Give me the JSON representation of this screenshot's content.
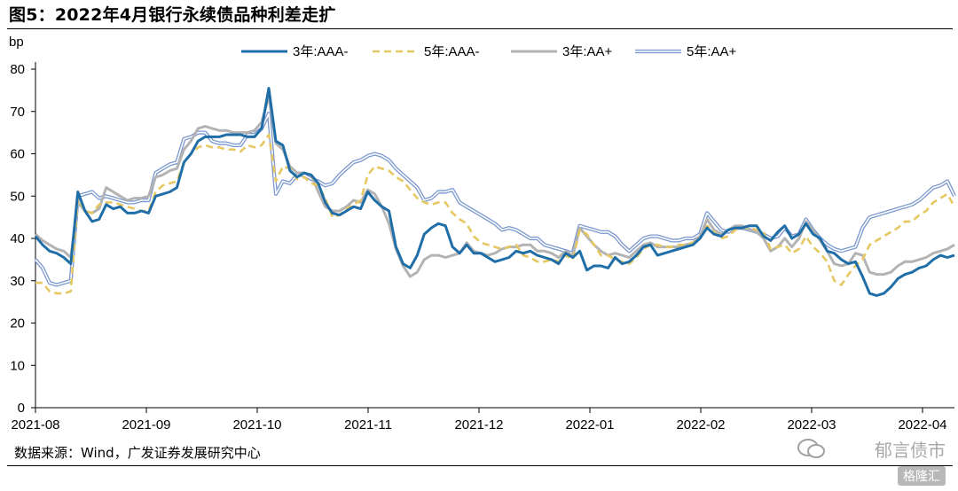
{
  "header": {
    "title": "图5：2022年4月银行永续债品种利差走扩"
  },
  "footer": {
    "source": "数据来源：Wind，广发证券发展研究中心",
    "watermark": "郁言债市",
    "badge": "格隆汇"
  },
  "colors": {
    "s1": "#1f6ea8",
    "s2": "#e6c863",
    "s3": "#b3b3b3",
    "s4_outer": "#7a97cf",
    "s4_inner": "#ffffff"
  },
  "chart_data": {
    "type": "line",
    "ylabel": "bp",
    "ylim": [
      0,
      80
    ],
    "yticks": [
      0,
      10,
      20,
      30,
      40,
      50,
      60,
      70,
      80
    ],
    "x_tick_labels": [
      "2021-08",
      "2021-09",
      "2021-10",
      "2021-11",
      "2021-12",
      "2022-01",
      "2022-02",
      "2022-03",
      "2022-04"
    ],
    "legend_position": "top",
    "grid": false,
    "x": [
      0,
      2,
      4,
      6,
      8,
      10,
      12,
      14,
      16,
      18,
      20,
      22,
      24,
      26,
      28,
      30,
      32,
      34,
      36,
      38,
      40,
      42,
      44,
      46,
      48,
      50,
      52,
      54,
      56,
      58,
      60,
      62,
      64,
      66,
      68,
      70,
      72,
      74,
      76,
      78,
      80,
      82,
      84,
      86,
      88,
      90,
      92,
      94,
      96,
      98,
      100,
      102,
      104,
      106,
      108,
      110,
      112,
      114,
      116,
      118,
      120,
      122,
      124,
      126,
      128,
      130,
      132,
      134,
      136,
      138,
      140,
      142,
      144,
      146,
      148,
      150,
      152,
      154,
      156,
      158,
      160,
      162,
      164,
      166,
      168,
      170,
      172,
      174,
      176,
      178,
      180,
      182,
      184,
      186,
      188,
      190,
      192,
      194,
      196,
      198,
      200,
      202,
      204,
      206,
      208,
      210,
      212,
      214,
      216,
      218,
      220,
      222,
      224,
      226,
      228,
      230,
      232,
      234,
      236,
      238,
      240,
      242,
      244,
      246,
      248,
      250,
      252,
      254,
      256,
      258,
      260
    ],
    "series": [
      {
        "name": "3年:AAA-",
        "values": [
          40.5,
          38.5,
          37.0,
          36.5,
          35.5,
          34.0,
          51.0,
          46.5,
          44.0,
          44.5,
          48.0,
          47.0,
          47.5,
          46.0,
          46.0,
          46.5,
          46.0,
          50.0,
          50.5,
          51.0,
          52.0,
          58.0,
          60.0,
          63.0,
          64.0,
          64.0,
          64.0,
          64.5,
          64.5,
          64.5,
          64.0,
          64.0,
          66.0,
          75.5,
          63.0,
          62.0,
          56.0,
          54.5,
          55.5,
          55.0,
          53.0,
          48.5,
          46.0,
          45.5,
          46.5,
          47.5,
          47.0,
          51.0,
          49.0,
          47.5,
          46.5,
          38.0,
          34.0,
          33.0,
          36.0,
          41.0,
          42.5,
          43.5,
          43.0,
          38.0,
          36.5,
          38.5,
          36.5,
          36.5,
          35.5,
          34.5,
          35.0,
          35.5,
          37.0,
          36.5,
          37.0,
          36.0,
          35.5,
          35.0,
          34.0,
          36.5,
          35.5,
          37.0,
          32.5,
          33.5,
          33.5,
          33.0,
          35.5,
          34.0,
          34.5,
          36.0,
          38.0,
          38.5,
          36.0,
          36.5,
          37.0,
          37.5,
          38.0,
          38.5,
          40.0,
          42.5,
          41.0,
          40.5,
          42.0,
          42.5,
          42.5,
          43.0,
          43.0,
          40.5,
          39.5,
          41.5,
          43.0,
          40.0,
          41.0,
          43.5,
          41.0,
          40.0,
          37.0,
          36.5,
          35.0,
          34.0,
          34.5,
          31.0,
          27.0,
          26.5,
          27.0,
          28.5,
          30.5,
          31.5,
          32.0,
          33.0,
          33.5,
          35.0,
          36.0,
          35.5,
          36.0
        ]
      },
      {
        "name": "5年:AAA-",
        "values": [
          29.5,
          29.5,
          27.5,
          27.0,
          27.0,
          27.5,
          49.5,
          46.5,
          46.0,
          48.0,
          48.5,
          48.5,
          48.0,
          47.5,
          47.0,
          46.5,
          46.5,
          51.0,
          52.5,
          53.0,
          53.5,
          58.0,
          60.0,
          61.5,
          62.0,
          61.5,
          61.5,
          61.0,
          61.0,
          60.5,
          62.0,
          61.5,
          62.0,
          64.5,
          53.5,
          57.0,
          56.5,
          54.0,
          54.5,
          53.0,
          52.5,
          49.5,
          45.0,
          45.5,
          47.0,
          48.0,
          49.0,
          55.0,
          57.0,
          56.5,
          56.0,
          54.5,
          53.5,
          51.5,
          49.5,
          48.5,
          48.0,
          48.5,
          48.5,
          46.0,
          44.5,
          43.5,
          40.5,
          39.0,
          38.5,
          38.0,
          37.5,
          38.0,
          38.5,
          36.0,
          35.5,
          34.5,
          34.5,
          35.0,
          34.5,
          36.0,
          35.0,
          42.0,
          41.0,
          38.5,
          36.0,
          36.0,
          35.0,
          34.5,
          34.0,
          35.5,
          37.5,
          38.5,
          38.5,
          38.0,
          38.0,
          38.5,
          38.5,
          39.0,
          40.0,
          43.0,
          41.5,
          40.0,
          40.5,
          42.0,
          42.5,
          42.5,
          42.0,
          41.5,
          37.5,
          38.0,
          38.5,
          36.5,
          37.5,
          40.5,
          38.0,
          36.5,
          34.5,
          30.0,
          29.0,
          31.5,
          33.5,
          35.0,
          38.5,
          39.5,
          40.5,
          41.5,
          42.5,
          44.0,
          44.0,
          45.5,
          46.5,
          48.5,
          49.5,
          50.5,
          47.5
        ]
      },
      {
        "name": "3年:AA+",
        "values": [
          41.0,
          39.5,
          38.5,
          37.5,
          37.0,
          35.5,
          48.5,
          46.5,
          46.0,
          47.0,
          52.0,
          51.0,
          50.0,
          49.0,
          49.5,
          49.5,
          50.0,
          54.5,
          55.0,
          56.0,
          56.5,
          61.0,
          63.0,
          66.0,
          66.5,
          66.0,
          65.5,
          65.5,
          65.0,
          65.0,
          65.0,
          65.5,
          67.5,
          73.5,
          62.5,
          61.0,
          57.0,
          55.5,
          55.5,
          55.0,
          51.0,
          47.5,
          46.5,
          46.5,
          47.5,
          49.0,
          48.5,
          51.5,
          50.5,
          47.5,
          43.5,
          37.5,
          33.5,
          31.0,
          32.0,
          35.0,
          36.0,
          36.0,
          35.5,
          36.0,
          36.5,
          39.0,
          37.0,
          36.5,
          36.0,
          36.5,
          37.5,
          38.0,
          38.0,
          38.5,
          38.5,
          37.0,
          37.0,
          36.5,
          35.5,
          37.0,
          36.0,
          42.5,
          40.5,
          38.5,
          37.0,
          36.0,
          36.5,
          36.0,
          35.5,
          37.0,
          38.5,
          39.0,
          38.0,
          38.0,
          38.0,
          38.0,
          38.5,
          39.0,
          40.5,
          44.5,
          42.0,
          41.0,
          42.0,
          43.0,
          43.0,
          42.0,
          41.5,
          40.0,
          37.0,
          38.0,
          40.0,
          38.0,
          40.0,
          44.0,
          42.0,
          39.5,
          37.0,
          34.0,
          33.5,
          34.0,
          36.5,
          36.0,
          32.0,
          31.5,
          31.5,
          32.0,
          33.5,
          34.5,
          34.5,
          35.0,
          35.5,
          36.5,
          37.0,
          37.5,
          38.5
        ]
      },
      {
        "name": "5年:AA+",
        "values": [
          35.0,
          33.0,
          29.5,
          29.0,
          29.5,
          30.0,
          50.0,
          50.5,
          51.0,
          49.5,
          50.0,
          49.5,
          49.0,
          48.5,
          48.5,
          49.0,
          49.0,
          55.5,
          56.5,
          57.5,
          58.0,
          63.5,
          64.0,
          65.0,
          65.0,
          63.0,
          62.5,
          62.5,
          62.0,
          62.0,
          64.5,
          64.5,
          66.0,
          69.5,
          50.5,
          53.5,
          53.0,
          55.0,
          55.0,
          54.0,
          53.5,
          52.5,
          53.0,
          55.0,
          56.5,
          58.0,
          58.5,
          59.5,
          60.0,
          59.5,
          58.5,
          56.5,
          55.0,
          53.5,
          52.0,
          49.0,
          49.5,
          51.0,
          51.0,
          51.5,
          48.5,
          47.5,
          46.5,
          45.5,
          44.5,
          43.5,
          42.0,
          42.5,
          42.0,
          41.0,
          40.0,
          40.0,
          38.5,
          38.0,
          37.5,
          37.0,
          36.5,
          43.0,
          42.5,
          42.0,
          41.5,
          41.5,
          40.5,
          38.5,
          37.0,
          38.5,
          40.0,
          40.5,
          40.5,
          40.0,
          39.5,
          39.5,
          40.0,
          40.0,
          41.0,
          46.0,
          44.0,
          42.0,
          41.5,
          42.5,
          42.5,
          42.0,
          41.5,
          41.0,
          40.0,
          40.5,
          42.5,
          40.5,
          41.0,
          44.5,
          42.0,
          40.0,
          38.5,
          37.5,
          37.0,
          37.5,
          38.0,
          42.5,
          45.0,
          45.5,
          46.0,
          46.5,
          47.0,
          47.5,
          48.0,
          49.0,
          50.5,
          52.0,
          52.5,
          53.5,
          50.0
        ]
      }
    ]
  }
}
